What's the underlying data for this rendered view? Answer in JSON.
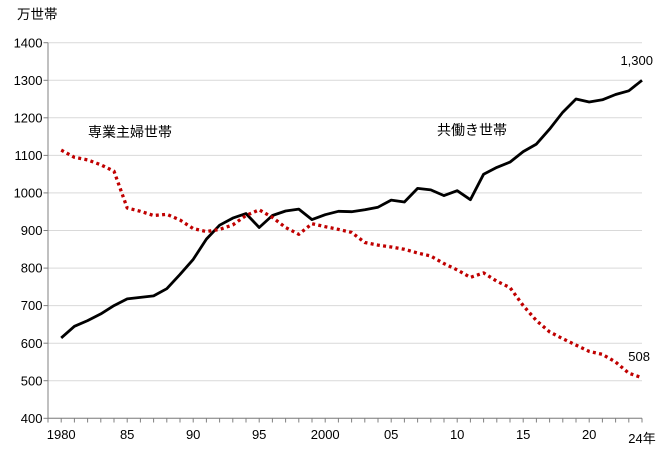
{
  "chart_data": {
    "type": "line",
    "title": "",
    "xlabel": "",
    "ylabel": "万世帯",
    "unit_label": "万世帯",
    "ylim": [
      400,
      1400
    ],
    "y_ticks": [
      400,
      500,
      600,
      700,
      800,
      900,
      1000,
      1100,
      1200,
      1300,
      1400
    ],
    "grid": true,
    "legend_position": "inline-labels",
    "years": [
      1980,
      1981,
      1982,
      1983,
      1984,
      1985,
      1986,
      1987,
      1988,
      1989,
      1990,
      1991,
      1992,
      1993,
      1994,
      1995,
      1996,
      1997,
      1998,
      1999,
      2000,
      2001,
      2002,
      2003,
      2004,
      2005,
      2006,
      2007,
      2008,
      2009,
      2010,
      2011,
      2012,
      2013,
      2014,
      2015,
      2016,
      2017,
      2018,
      2019,
      2020,
      2021,
      2022,
      2023,
      2024
    ],
    "x_tick_labels": [
      {
        "label": "1980",
        "year": 1980
      },
      {
        "label": "85",
        "year": 1985
      },
      {
        "label": "90",
        "year": 1990
      },
      {
        "label": "95",
        "year": 1995
      },
      {
        "label": "2000",
        "year": 2000
      },
      {
        "label": "05",
        "year": 2005
      },
      {
        "label": "10",
        "year": 2010
      },
      {
        "label": "15",
        "year": 2015
      },
      {
        "label": "20",
        "year": 2020
      },
      {
        "label": "24年",
        "year": 2024
      }
    ],
    "series": [
      {
        "name": "専業主婦世帯",
        "slug": "fulltime-housewife-households",
        "color": "#c00000",
        "line_style": "dotted",
        "end_value_label": "508",
        "values": [
          1114,
          1095,
          1088,
          1075,
          1058,
          960,
          951,
          940,
          943,
          928,
          905,
          897,
          903,
          915,
          940,
          955,
          935,
          908,
          890,
          918,
          910,
          903,
          895,
          868,
          861,
          856,
          850,
          840,
          832,
          812,
          795,
          775,
          787,
          765,
          748,
          700,
          660,
          630,
          612,
          595,
          578,
          570,
          550,
          520,
          508
        ]
      },
      {
        "name": "共働き世帯",
        "slug": "dual-income-households",
        "color": "#000000",
        "line_style": "solid",
        "end_value_label": "1,300",
        "values": [
          614,
          645,
          660,
          678,
          700,
          718,
          722,
          726,
          745,
          783,
          823,
          877,
          914,
          933,
          945,
          908,
          940,
          952,
          957,
          929,
          942,
          951,
          950,
          955,
          962,
          981,
          976,
          1012,
          1008,
          993,
          1006,
          982,
          1050,
          1068,
          1082,
          1110,
          1130,
          1170,
          1215,
          1250,
          1242,
          1248,
          1262,
          1272,
          1300
        ]
      }
    ],
    "colors": {
      "gridline": "#d9d9d9",
      "axis": "#808080",
      "text": "#000000",
      "background": "#ffffff"
    }
  }
}
